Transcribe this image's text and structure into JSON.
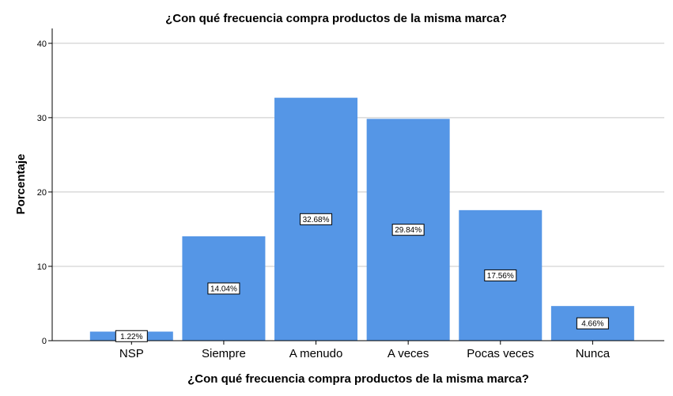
{
  "chart_data": {
    "type": "bar",
    "title": "¿Con qué frecuencia compra productos de la misma marca?",
    "xlabel": "¿Con qué frecuencia compra productos de la misma marca?",
    "ylabel": "Porcentaje",
    "categories": [
      "NSP",
      "Siempre",
      "A menudo",
      "A veces",
      "Pocas veces",
      "Nunca"
    ],
    "values": [
      1.22,
      14.04,
      32.68,
      29.84,
      17.56,
      4.66
    ],
    "data_labels": [
      "1.22%",
      "14.04%",
      "32.68%",
      "29.84%",
      "17.56%",
      "4.66%"
    ],
    "ylim": [
      0,
      42
    ],
    "yticks": [
      0,
      10,
      20,
      30,
      40
    ],
    "grid": true,
    "bar_color": "#5596e6",
    "grid_color": "#c8c8c8"
  }
}
